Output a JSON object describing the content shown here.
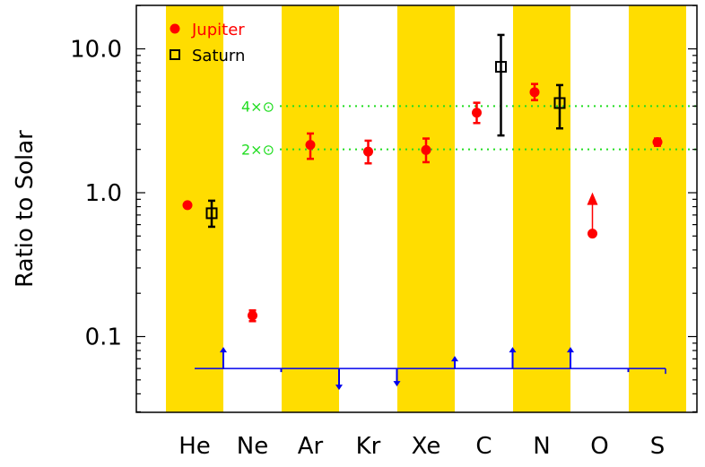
{
  "chart_data": {
    "type": "scatter",
    "title": "",
    "xlabel": "",
    "ylabel": "Ratio to Solar",
    "y_scale": "log",
    "ylim": [
      0.05,
      20
    ],
    "grid": false,
    "legend_position": "top-left",
    "categories": [
      "He",
      "Ne",
      "Ar",
      "Kr",
      "Xe",
      "C",
      "N",
      "O",
      "S"
    ],
    "highlighted_categories": [
      "He",
      "Ar",
      "Xe",
      "N",
      "S"
    ],
    "highlight_color": "#ffdd00",
    "yticks": [
      {
        "value": 0.1,
        "label": "0.1"
      },
      {
        "value": 1.0,
        "label": "1.0"
      },
      {
        "value": 10.0,
        "label": "10.0"
      }
    ],
    "reference_lines": [
      {
        "value": 4,
        "label": "4×⊙",
        "color": "#22dd22"
      },
      {
        "value": 2,
        "label": "2×⊙",
        "color": "#22dd22"
      }
    ],
    "series": [
      {
        "name": "Jupiter",
        "color": "#ff0000",
        "marker": "filled-circle",
        "points": [
          {
            "x": "He",
            "y": 0.82,
            "lo": null,
            "hi": null
          },
          {
            "x": "Ne",
            "y": 0.14,
            "lo": 0.128,
            "hi": 0.152
          },
          {
            "x": "Ar",
            "y": 2.15,
            "lo": 1.72,
            "hi": 2.58
          },
          {
            "x": "Kr",
            "y": 1.93,
            "lo": 1.6,
            "hi": 2.3
          },
          {
            "x": "Xe",
            "y": 1.98,
            "lo": 1.63,
            "hi": 2.38
          },
          {
            "x": "C",
            "y": 3.6,
            "lo": 3.05,
            "hi": 4.22
          },
          {
            "x": "N",
            "y": 5.0,
            "lo": 4.4,
            "hi": 5.7
          },
          {
            "x": "O",
            "y": 0.52,
            "lo": null,
            "hi": null,
            "lower_limit_arrow_to": 0.95
          },
          {
            "x": "S",
            "y": 2.25,
            "lo": 2.12,
            "hi": 2.38
          }
        ]
      },
      {
        "name": "Saturn",
        "color": "#000000",
        "marker": "open-square",
        "points": [
          {
            "x": "He",
            "y": 0.72,
            "lo": 0.58,
            "hi": 0.88
          },
          {
            "x": "C",
            "y": 7.5,
            "lo": 2.5,
            "hi": 12.5
          },
          {
            "x": "N",
            "y": 4.2,
            "lo": 2.8,
            "hi": 5.6
          }
        ]
      }
    ],
    "trend_markers": {
      "color": "#0000ee",
      "baseline_y": 0.06,
      "arrows": [
        {
          "x": "He",
          "direction": "up",
          "size": "large"
        },
        {
          "x": "Ne",
          "direction": "down",
          "size": "tiny"
        },
        {
          "x": "Ar",
          "direction": "down",
          "size": "large"
        },
        {
          "x": "Kr",
          "direction": "down",
          "size": "medium"
        },
        {
          "x": "Xe",
          "direction": "up",
          "size": "small"
        },
        {
          "x": "C",
          "direction": "up",
          "size": "large"
        },
        {
          "x": "N",
          "direction": "up",
          "size": "large"
        },
        {
          "x": "O",
          "direction": "down",
          "size": "tiny"
        }
      ]
    }
  }
}
